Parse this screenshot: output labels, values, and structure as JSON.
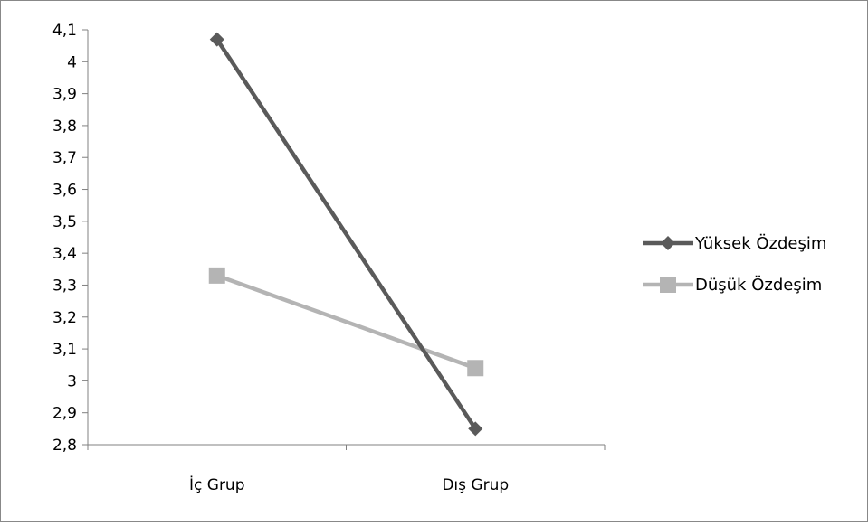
{
  "chart_data": {
    "type": "line",
    "categories": [
      "İç Grup",
      "Dış Grup"
    ],
    "series": [
      {
        "name": "Yüksek Özdeşim",
        "values": [
          4.07,
          2.85
        ],
        "color": "#5a5a5a",
        "marker": "diamond"
      },
      {
        "name": "Düşük Özdeşim",
        "values": [
          3.33,
          3.04
        ],
        "color": "#b4b4b4",
        "marker": "square"
      }
    ],
    "ylim": [
      2.8,
      4.1
    ],
    "yticks": [
      "2,8",
      "2,9",
      "3",
      "3,1",
      "3,2",
      "3,3",
      "3,4",
      "3,5",
      "3,6",
      "3,7",
      "3,8",
      "3,9",
      "4",
      "4,1"
    ],
    "grid": false,
    "legend_position": "right",
    "title": "",
    "xlabel": "",
    "ylabel": ""
  }
}
